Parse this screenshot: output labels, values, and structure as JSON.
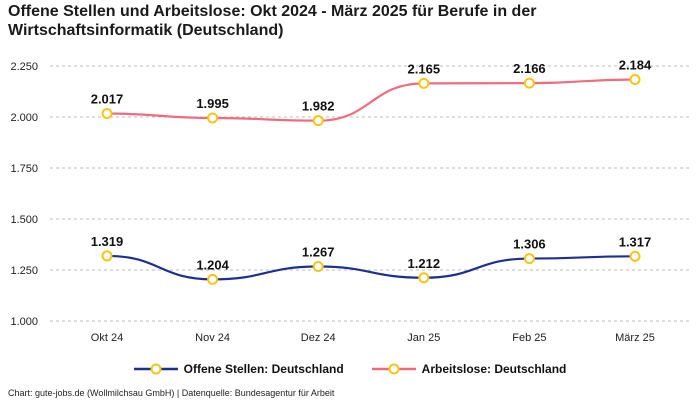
{
  "chart_data": {
    "type": "line",
    "title": "Offene Stellen und Arbeitslose: Okt 2024 - März 2025 für Berufe in der Wirtschaftsinformatik (Deutschland)",
    "categories": [
      "Okt 24",
      "Nov 24",
      "Dez 24",
      "Jan 25",
      "Feb 25",
      "März 25"
    ],
    "series": [
      {
        "name": "Offene Stellen: Deutschland",
        "values": [
          1319,
          1204,
          1267,
          1212,
          1306,
          1317
        ],
        "labels": [
          "1.319",
          "1.204",
          "1.267",
          "1.212",
          "1.306",
          "1.317"
        ],
        "color": "#1f2f8f"
      },
      {
        "name": "Arbeitslose: Deutschland",
        "values": [
          2017,
          1995,
          1982,
          2165,
          2166,
          2184
        ],
        "labels": [
          "2.017",
          "1.995",
          "1.982",
          "2.165",
          "2.166",
          "2.184"
        ],
        "color": "#f06b7e"
      }
    ],
    "yticks": [
      1000,
      1250,
      1500,
      1750,
      2000,
      2250
    ],
    "ytick_labels": [
      "1.000",
      "1.250",
      "1.500",
      "1.750",
      "2.000",
      "2.250"
    ],
    "ylim": [
      1000,
      2250
    ],
    "xlabel": "",
    "ylabel": "",
    "grid": true,
    "legend": "bottom",
    "marker_color": "#f5c518"
  },
  "footer": "Chart: gute-jobs.de (Wollmilchsau GmbH) | Datenquelle: Bundesagentur für Arbeit"
}
